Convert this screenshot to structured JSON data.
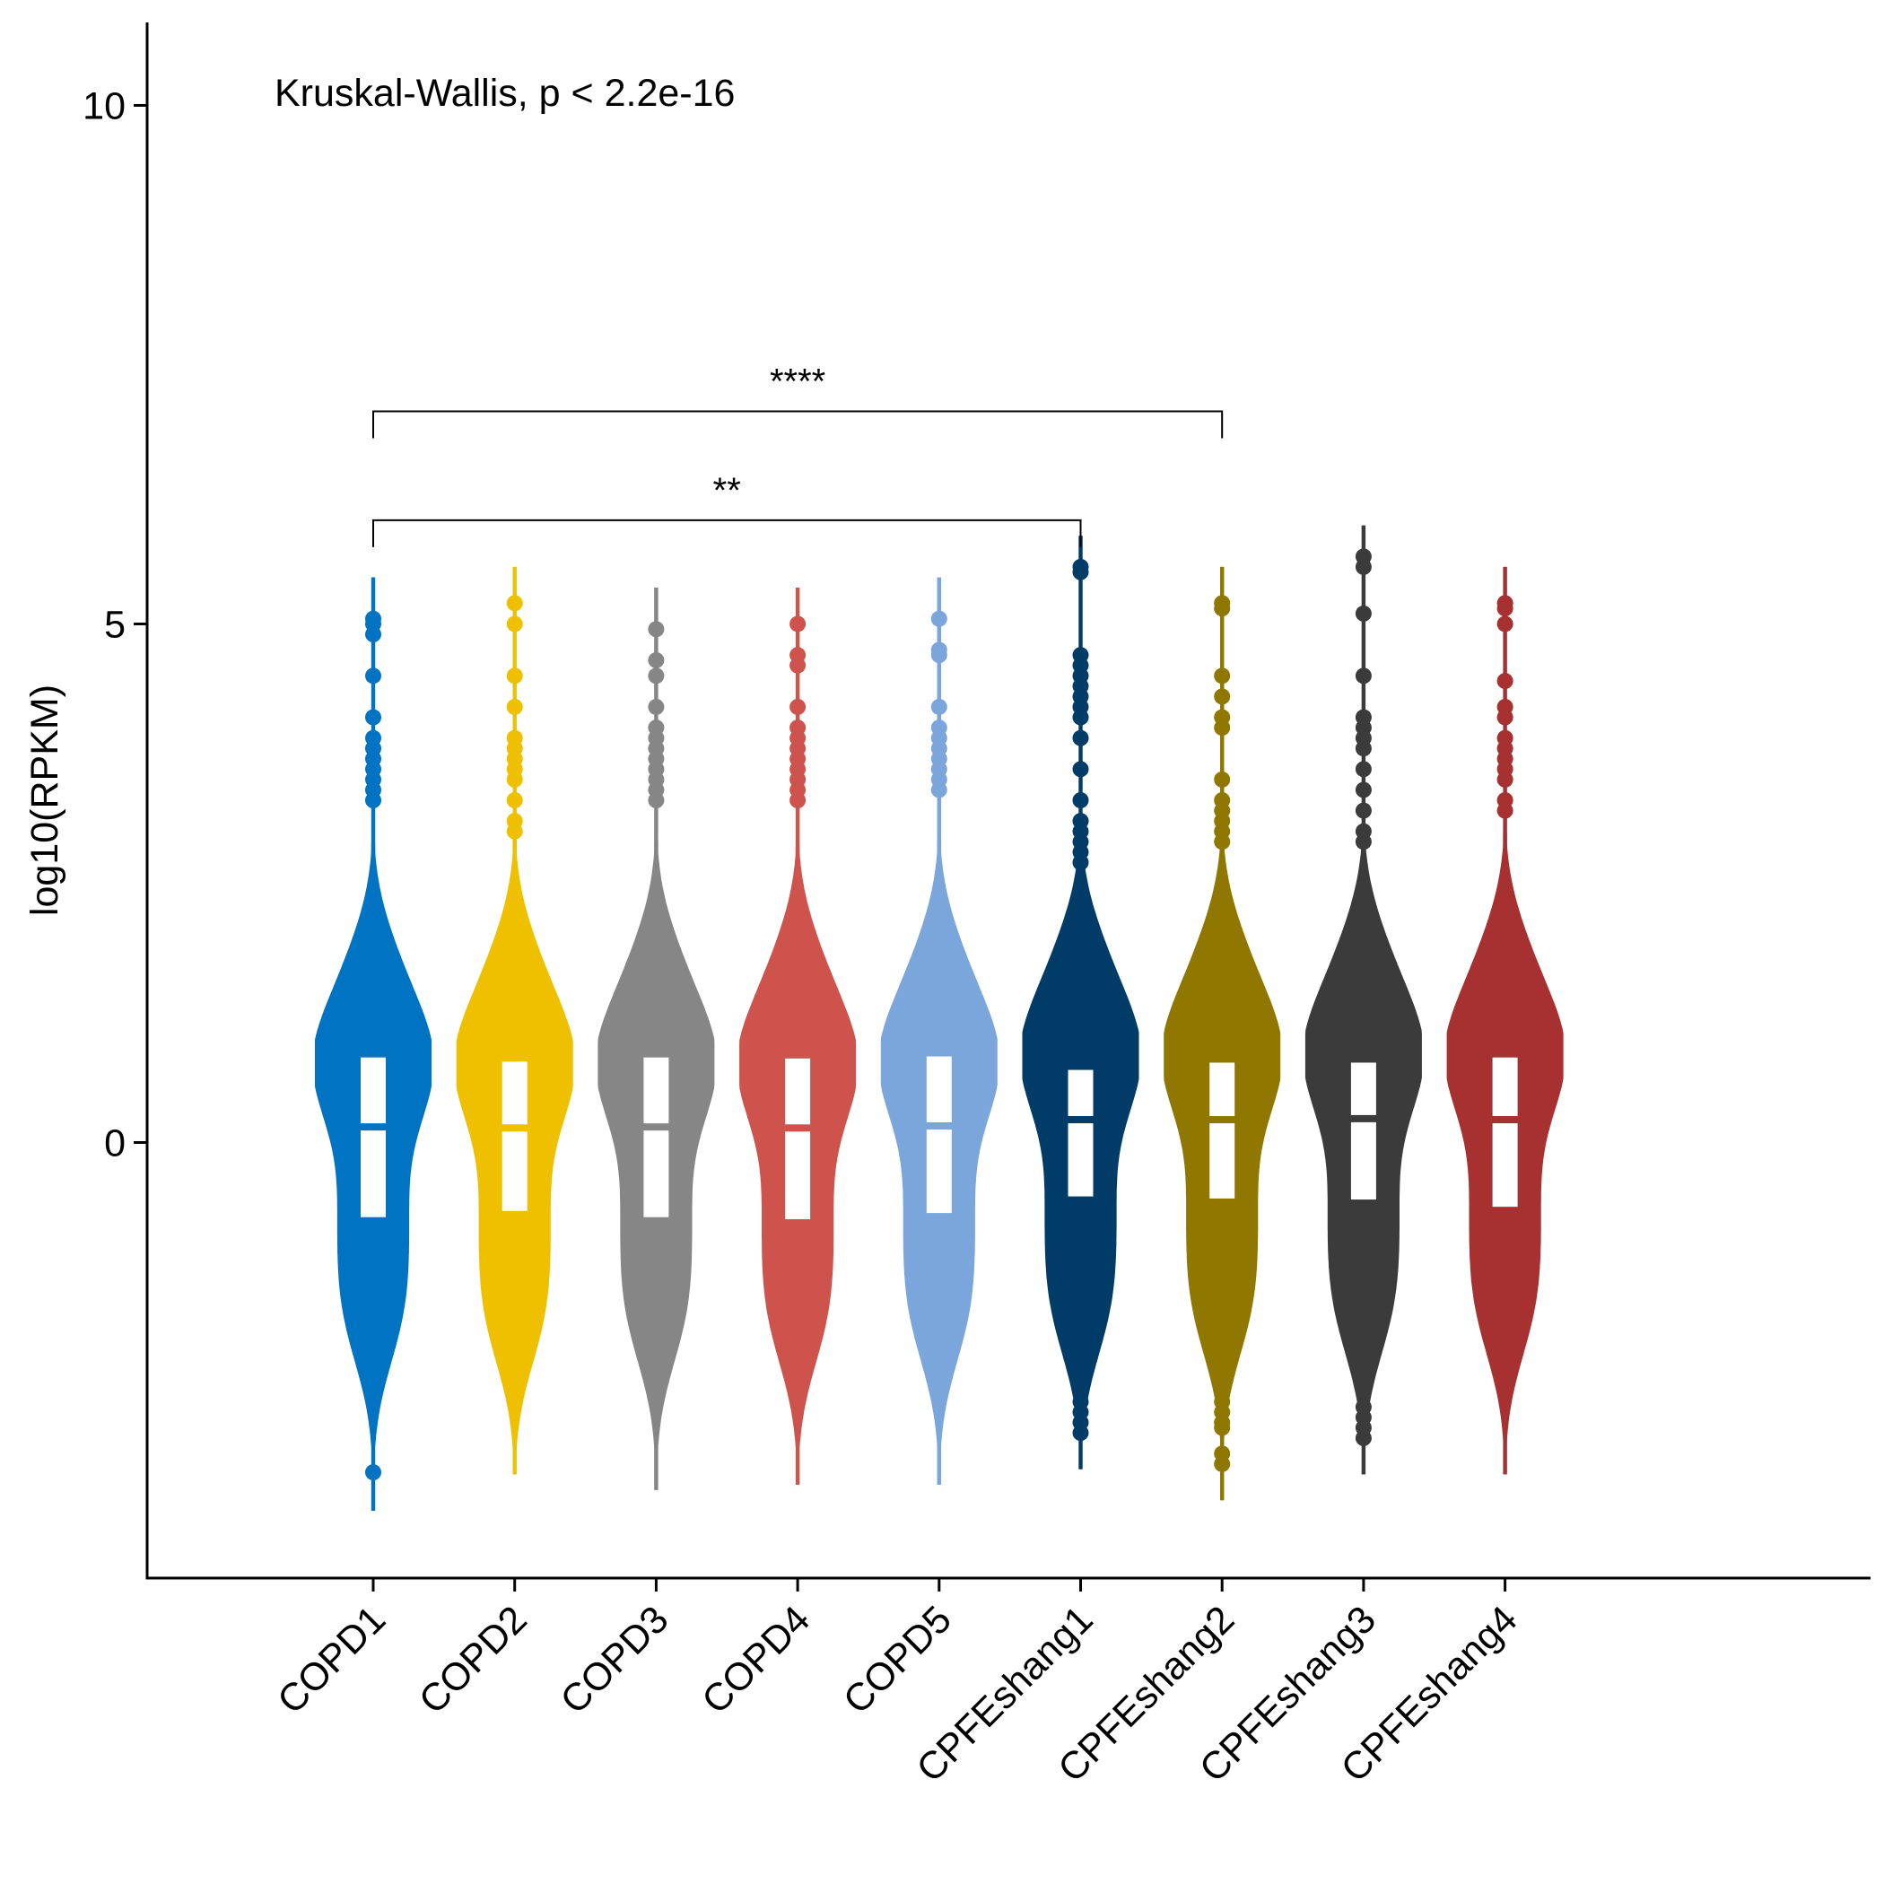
{
  "chart_data": {
    "type": "violin",
    "title": "",
    "xlabel": "",
    "ylabel": "log10(RPKM)",
    "ylim": [
      -4.2,
      10.8
    ],
    "yticks": [
      0,
      5,
      10
    ],
    "annotation": "Kruskal-Wallis, p < 2.2e-16",
    "legend": "none",
    "grid": false,
    "categories": [
      "COPD1",
      "COPD2",
      "COPD3",
      "COPD4",
      "COPD5",
      "CPFEshang1",
      "CPFEshang2",
      "CPFEshang3",
      "CPFEshang4"
    ],
    "series": [
      {
        "color": "#0073C2",
        "q1": -0.72,
        "median": 0.15,
        "q3": 0.82,
        "min": -3.55,
        "max": 5.45,
        "outliers": [
          -3.18,
          3.3,
          3.4,
          3.5,
          3.6,
          3.7,
          3.8,
          3.9,
          4.1,
          4.5,
          4.9,
          5.0,
          5.05
        ]
      },
      {
        "color": "#EFC000",
        "q1": -0.66,
        "median": 0.14,
        "q3": 0.78,
        "min": -3.2,
        "max": 5.55,
        "outliers": [
          3.0,
          3.1,
          3.3,
          3.5,
          3.6,
          3.7,
          3.8,
          3.9,
          4.2,
          4.5,
          5.0,
          5.2
        ]
      },
      {
        "color": "#868686",
        "q1": -0.72,
        "median": 0.15,
        "q3": 0.82,
        "min": -3.35,
        "max": 5.35,
        "outliers": [
          3.3,
          3.4,
          3.5,
          3.6,
          3.7,
          3.8,
          3.9,
          4.0,
          4.2,
          4.5,
          4.65,
          4.95
        ]
      },
      {
        "color": "#CD534C",
        "q1": -0.74,
        "median": 0.14,
        "q3": 0.81,
        "min": -3.3,
        "max": 5.35,
        "outliers": [
          3.3,
          3.4,
          3.5,
          3.6,
          3.7,
          3.8,
          3.9,
          4.0,
          4.2,
          4.6,
          4.7,
          5.0
        ]
      },
      {
        "color": "#7AA6DC",
        "q1": -0.68,
        "median": 0.16,
        "q3": 0.83,
        "min": -3.3,
        "max": 5.45,
        "outliers": [
          3.4,
          3.5,
          3.6,
          3.7,
          3.8,
          3.9,
          4.0,
          4.2,
          4.7,
          4.75,
          5.05
        ]
      },
      {
        "color": "#003C67",
        "q1": -0.52,
        "median": 0.22,
        "q3": 0.7,
        "min": -3.15,
        "max": 5.85,
        "outliers": [
          -2.8,
          -2.7,
          -2.6,
          -2.5,
          -2.4,
          2.7,
          2.8,
          2.9,
          3.0,
          3.1,
          3.3,
          3.6,
          3.9,
          4.1,
          4.2,
          4.3,
          4.4,
          4.5,
          4.6,
          4.7,
          5.5,
          5.55
        ]
      },
      {
        "color": "#8F7700",
        "q1": -0.54,
        "median": 0.22,
        "q3": 0.77,
        "min": -3.45,
        "max": 5.55,
        "outliers": [
          -3.1,
          -3.0,
          -2.75,
          -2.7,
          -2.6,
          -2.5,
          2.9,
          3.0,
          3.1,
          3.2,
          3.3,
          3.5,
          4.0,
          4.1,
          4.3,
          4.5,
          5.15,
          5.2
        ]
      },
      {
        "color": "#3B3B3B",
        "q1": -0.55,
        "median": 0.23,
        "q3": 0.77,
        "min": -3.2,
        "max": 5.95,
        "outliers": [
          -2.85,
          -2.75,
          -2.65,
          -2.55,
          2.9,
          3.0,
          3.2,
          3.4,
          3.6,
          3.8,
          3.9,
          4.0,
          4.1,
          4.5,
          5.1,
          5.55,
          5.65
        ]
      },
      {
        "color": "#A73030",
        "q1": -0.62,
        "median": 0.22,
        "q3": 0.82,
        "min": -3.2,
        "max": 5.55,
        "outliers": [
          3.2,
          3.3,
          3.5,
          3.6,
          3.7,
          3.8,
          3.9,
          4.1,
          4.2,
          4.45,
          5.0,
          5.15,
          5.2
        ]
      }
    ],
    "comparisons": [
      {
        "from": "COPD1",
        "to": "CPFEshang1",
        "label": "**",
        "y": 6.0
      },
      {
        "from": "COPD1",
        "to": "CPFEshang2",
        "label": "****",
        "y": 7.05
      }
    ]
  }
}
